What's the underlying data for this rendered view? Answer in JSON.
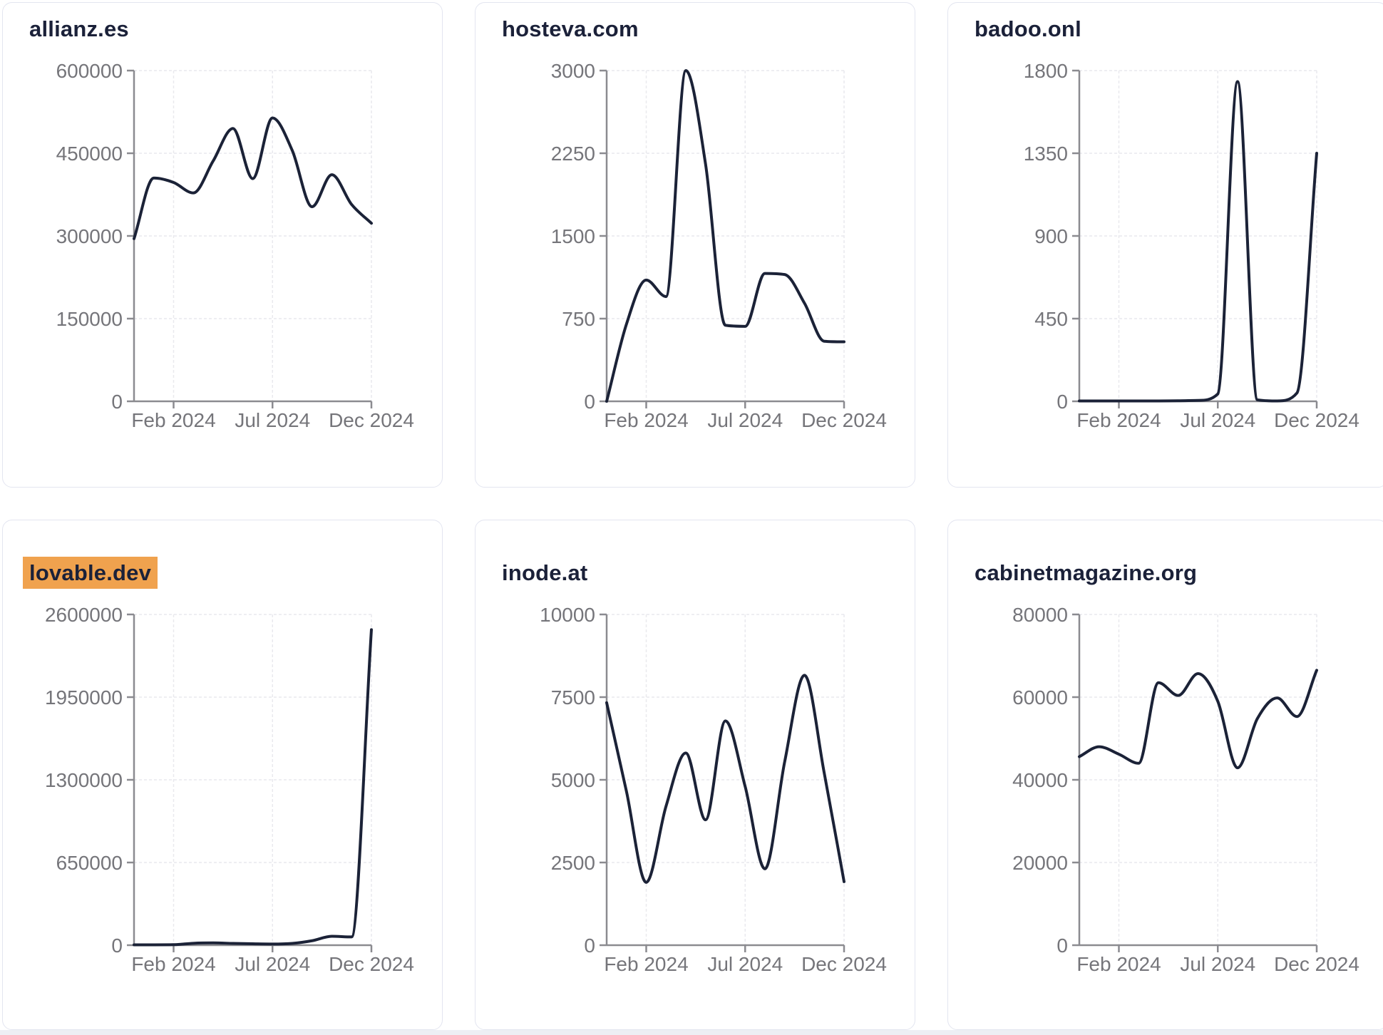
{
  "style": {
    "page_bg": "#edeff4",
    "surface_bg": "#ffffff",
    "card_border": "#e3e5f0",
    "line_color": "#1b2237",
    "title_color": "#1b2139",
    "label_color": "#75757a",
    "axis_color": "#8b8b90",
    "grid_color": "#e9e9ee",
    "highlight_color": "#f0a24e"
  },
  "x_axis": {
    "tick_labels": [
      "Feb 2024",
      "Jul 2024",
      "Dec 2024"
    ],
    "tick_month_index": [
      2,
      7,
      12
    ]
  },
  "chart_data": [
    {
      "type": "line",
      "title": "allianz.es",
      "title_highlighted": false,
      "months": [
        "Dec 2023",
        "Jan 2024",
        "Feb 2024",
        "Mar 2024",
        "Apr 2024",
        "May 2024",
        "Jun 2024",
        "Jul 2024",
        "Aug 2024",
        "Sep 2024",
        "Oct 2024",
        "Nov 2024",
        "Dec 2024"
      ],
      "values": [
        295000,
        405000,
        397000,
        378000,
        436000,
        495000,
        404000,
        514000,
        455000,
        353000,
        411000,
        357000,
        323000
      ],
      "y_ticks": [
        0,
        150000,
        300000,
        450000,
        600000
      ],
      "ylim": [
        0,
        600000
      ],
      "x_tick_labels": [
        "Feb 2024",
        "Jul 2024",
        "Dec 2024"
      ],
      "grid": "dashed",
      "legend": "none"
    },
    {
      "type": "line",
      "title": "hosteva.com",
      "title_highlighted": false,
      "months": [
        "Dec 2023",
        "Jan 2024",
        "Feb 2024",
        "Mar 2024",
        "Apr 2024",
        "May 2024",
        "Jun 2024",
        "Jul 2024",
        "Aug 2024",
        "Sep 2024",
        "Oct 2024",
        "Nov 2024",
        "Dec 2024"
      ],
      "values": [
        0,
        700,
        1100,
        950,
        3000,
        2150,
        690,
        680,
        1160,
        1150,
        890,
        545,
        540
      ],
      "y_ticks": [
        0,
        750,
        1500,
        2250,
        3000
      ],
      "ylim": [
        0,
        3000
      ],
      "x_tick_labels": [
        "Feb 2024",
        "Jul 2024",
        "Dec 2024"
      ],
      "grid": "dashed",
      "legend": "none"
    },
    {
      "type": "line",
      "title": "badoo.onl",
      "title_highlighted": false,
      "months": [
        "Dec 2023",
        "Jan 2024",
        "Feb 2024",
        "Mar 2024",
        "Apr 2024",
        "May 2024",
        "Jun 2024",
        "Jul 2024",
        "Aug 2024",
        "Sep 2024",
        "Oct 2024",
        "Nov 2024",
        "Dec 2024"
      ],
      "values": [
        2,
        2,
        2,
        2,
        2,
        3,
        5,
        40,
        1740,
        8,
        2,
        45,
        1350
      ],
      "y_ticks": [
        0,
        450,
        900,
        1350,
        1800
      ],
      "ylim": [
        0,
        1800
      ],
      "x_tick_labels": [
        "Feb 2024",
        "Jul 2024",
        "Dec 2024"
      ],
      "grid": "dashed",
      "legend": "none"
    },
    {
      "type": "line",
      "title": "lovable.dev",
      "title_highlighted": true,
      "months": [
        "Dec 2023",
        "Jan 2024",
        "Feb 2024",
        "Mar 2024",
        "Apr 2024",
        "May 2024",
        "Jun 2024",
        "Jul 2024",
        "Aug 2024",
        "Sep 2024",
        "Oct 2024",
        "Nov 2024",
        "Dec 2024"
      ],
      "values": [
        3000,
        3000,
        4000,
        15000,
        18000,
        14000,
        11000,
        9000,
        14000,
        35000,
        70000,
        65000,
        2480000
      ],
      "y_ticks": [
        0,
        650000,
        1300000,
        1950000,
        2600000
      ],
      "ylim": [
        0,
        2600000
      ],
      "x_tick_labels": [
        "Feb 2024",
        "Jul 2024",
        "Dec 2024"
      ],
      "grid": "dashed",
      "legend": "none"
    },
    {
      "type": "line",
      "title": "inode.at",
      "title_highlighted": false,
      "months": [
        "Dec 2023",
        "Jan 2024",
        "Feb 2024",
        "Mar 2024",
        "Apr 2024",
        "May 2024",
        "Jun 2024",
        "Jul 2024",
        "Aug 2024",
        "Sep 2024",
        "Oct 2024",
        "Nov 2024",
        "Dec 2024"
      ],
      "values": [
        7330,
        4650,
        1900,
        4200,
        5810,
        3790,
        6780,
        4800,
        2310,
        5550,
        8160,
        5200,
        1920
      ],
      "y_ticks": [
        0,
        2500,
        5000,
        7500,
        10000
      ],
      "ylim": [
        0,
        10000
      ],
      "x_tick_labels": [
        "Feb 2024",
        "Jul 2024",
        "Dec 2024"
      ],
      "grid": "dashed",
      "legend": "none"
    },
    {
      "type": "line",
      "title": "cabinetmagazine.org",
      "title_highlighted": false,
      "months": [
        "Dec 2023",
        "Jan 2024",
        "Feb 2024",
        "Mar 2024",
        "Apr 2024",
        "May 2024",
        "Jun 2024",
        "Jul 2024",
        "Aug 2024",
        "Sep 2024",
        "Oct 2024",
        "Nov 2024",
        "Dec 2024"
      ],
      "values": [
        45600,
        48000,
        46200,
        44000,
        63500,
        60400,
        65700,
        59000,
        42900,
        54800,
        59800,
        55300,
        66500
      ],
      "y_ticks": [
        0,
        20000,
        40000,
        60000,
        80000
      ],
      "ylim": [
        0,
        80000
      ],
      "x_tick_labels": [
        "Feb 2024",
        "Jul 2024",
        "Dec 2024"
      ],
      "grid": "dashed",
      "legend": "none"
    }
  ]
}
